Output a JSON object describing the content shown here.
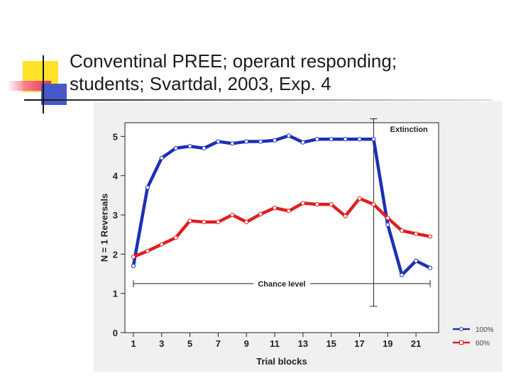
{
  "slide": {
    "title_line1": "Conventinal PREE; operant responding;",
    "title_line2": "students; Svartdal, 2003, Exp. 4"
  },
  "colors": {
    "series_100": "#1c2fb8",
    "series_60": "#e01e1e",
    "deco_yellow": "#ffe22a",
    "deco_blue": "#4659c9",
    "deco_red": "#f02d4a",
    "chart_bg": "#f0f0f0"
  },
  "chart_data": {
    "type": "line",
    "xlabel": "Trial blocks",
    "ylabel": "N = 1 Reversals",
    "x": [
      1,
      2,
      3,
      4,
      5,
      6,
      7,
      8,
      9,
      10,
      11,
      12,
      13,
      14,
      15,
      16,
      17,
      18,
      19,
      20,
      21,
      22
    ],
    "xticks": [
      1,
      3,
      5,
      7,
      9,
      11,
      13,
      15,
      17,
      19,
      21
    ],
    "yticks": [
      0,
      1,
      2,
      3,
      4,
      5
    ],
    "xlim": [
      0.4,
      22.6
    ],
    "ylim": [
      0,
      5.35
    ],
    "grid": false,
    "legend_position": "bottom-right",
    "series": [
      {
        "name": "100%",
        "color": "#1c2fb8",
        "values": [
          1.7,
          3.7,
          4.45,
          4.7,
          4.75,
          4.7,
          4.87,
          4.82,
          4.87,
          4.87,
          4.9,
          5.02,
          4.85,
          4.93,
          4.93,
          4.93,
          4.93,
          4.93,
          2.75,
          1.47,
          1.83,
          1.65
        ]
      },
      {
        "name": "60%",
        "color": "#e01e1e",
        "values": [
          1.93,
          2.08,
          2.25,
          2.42,
          2.85,
          2.82,
          2.82,
          3.0,
          2.82,
          3.02,
          3.18,
          3.1,
          3.3,
          3.27,
          3.27,
          2.97,
          3.42,
          3.27,
          2.92,
          2.6,
          2.52,
          2.45
        ]
      }
    ],
    "annotations": {
      "extinction_label": "Extinction",
      "extinction_at_x": 18,
      "extinction_y_range": [
        0.67,
        5.45
      ],
      "chance_label": "Chance level",
      "chance_value": 1.25,
      "chance_x_range": [
        1,
        22
      ]
    }
  }
}
